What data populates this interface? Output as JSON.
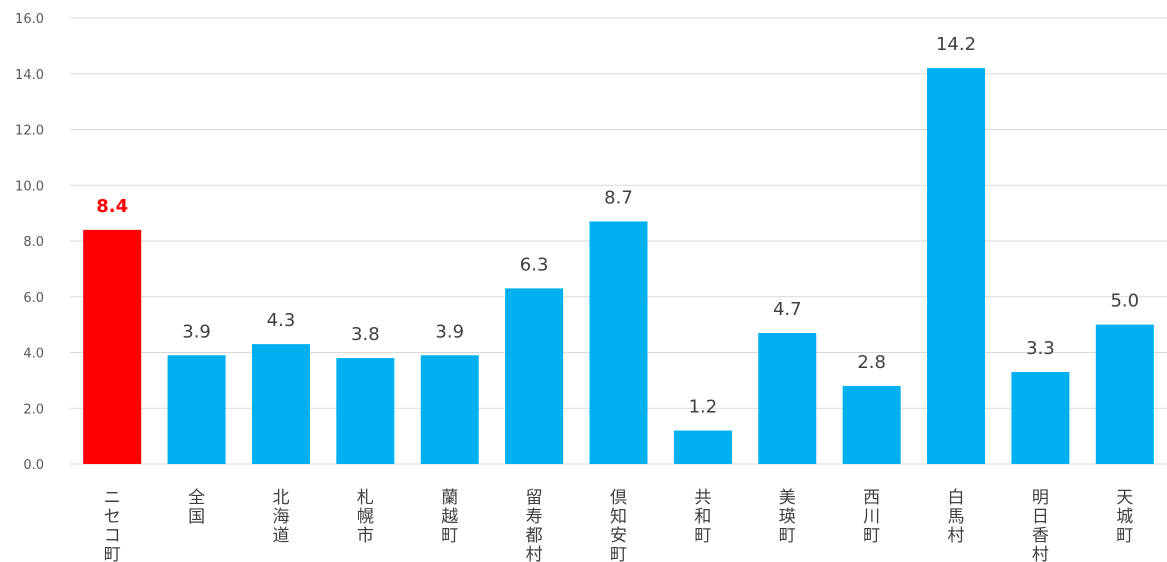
{
  "chart_data": {
    "type": "bar",
    "categories": [
      "ニセコ町",
      "全国",
      "北海道",
      "札幌市",
      "蘭越町",
      "留寿都村",
      "倶知安町",
      "共和町",
      "美瑛町",
      "西川町",
      "白馬村",
      "明日香村",
      "天城町"
    ],
    "values": [
      8.4,
      3.9,
      4.3,
      3.8,
      3.9,
      6.3,
      8.7,
      1.2,
      4.7,
      2.8,
      14.2,
      3.3,
      5.0
    ],
    "value_labels": [
      "8.4",
      "3.9",
      "4.3",
      "3.8",
      "3.9",
      "6.3",
      "8.7",
      "1.2",
      "4.7",
      "2.8",
      "14.2",
      "3.3",
      "5.0"
    ],
    "highlight_index": 0,
    "colors": {
      "bar": "#00b0f0",
      "highlight": "#ff0000",
      "grid": "#d9d9d9"
    },
    "ylim": [
      0,
      16
    ],
    "y_ticks": [
      "0.0",
      "2.0",
      "4.0",
      "6.0",
      "8.0",
      "10.0",
      "12.0",
      "14.0",
      "16.0"
    ],
    "title": "",
    "xlabel": "",
    "ylabel": "",
    "grid": true,
    "legend": "none"
  }
}
